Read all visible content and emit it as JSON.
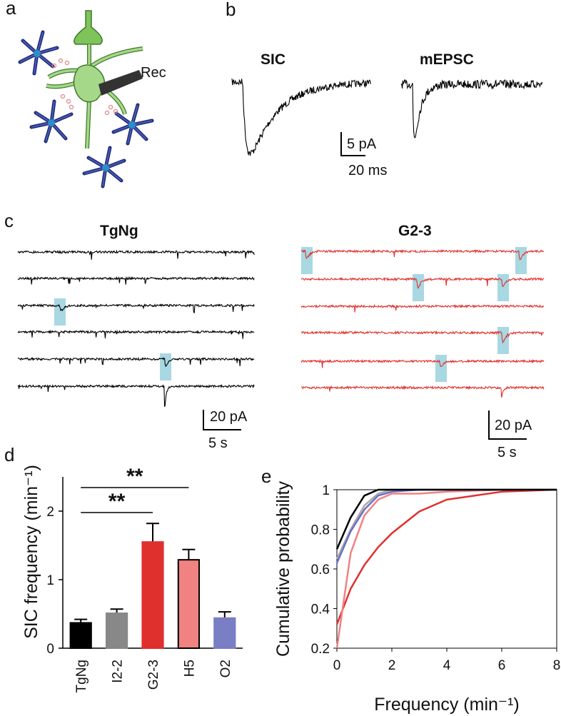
{
  "panel_labels": [
    "a",
    "b",
    "c",
    "d",
    "e"
  ],
  "panel_a": {
    "label": "Rec"
  },
  "panel_b": {
    "traces": [
      "SIC",
      "mEPSC"
    ],
    "scale_y": "5 pA",
    "scale_x": "20 ms"
  },
  "panel_c": {
    "traces": [
      "TgNg",
      "G2-3"
    ],
    "scale_y": [
      "20 pA",
      "20 pA"
    ],
    "scale_x": [
      "5 s",
      "5 s"
    ]
  },
  "chart_data": [
    {
      "type": "bar",
      "ylabel": "SIC frequency (min⁻¹)",
      "categories": [
        "TgNg",
        "I2-2",
        "G2-3",
        "H5",
        "O2"
      ],
      "values": [
        0.37,
        0.51,
        1.55,
        1.29,
        0.44
      ],
      "errors": [
        0.05,
        0.06,
        0.27,
        0.15,
        0.09
      ],
      "colors": [
        "#000000",
        "#888888",
        "#e0302e",
        "#f08282",
        "#7a7ec4"
      ],
      "edgecolors": [
        "#000000",
        "#888888",
        "#e0302e",
        "#000000",
        "#7a7ec4"
      ],
      "ylim": [
        0,
        2.5
      ],
      "yticks": [
        0,
        1,
        2
      ],
      "annotations": [
        "**",
        "**"
      ]
    },
    {
      "type": "line",
      "xlabel": "Frequency (min⁻¹)",
      "ylabel": "Cumulative probability",
      "x": [
        0,
        0.5,
        1,
        1.5,
        2,
        3,
        4,
        6,
        8
      ],
      "series": [
        {
          "color": "#e0302e",
          "values": [
            0.32,
            0.5,
            0.62,
            0.71,
            0.78,
            0.89,
            0.95,
            0.99,
            1.0
          ]
        },
        {
          "color": "#f08282",
          "values": [
            0.2,
            0.68,
            0.87,
            0.95,
            0.98,
            0.98,
            0.99,
            1.0,
            1.0
          ]
        },
        {
          "color": "#aaaaaa",
          "values": [
            0.65,
            0.8,
            0.92,
            0.98,
            1.0,
            1.0,
            1.0,
            1.0,
            1.0
          ]
        },
        {
          "color": "#6b70c8",
          "values": [
            0.63,
            0.79,
            0.9,
            0.97,
            0.99,
            1.0,
            1.0,
            1.0,
            1.0
          ]
        },
        {
          "color": "#000000",
          "values": [
            0.7,
            0.86,
            0.97,
            1.0,
            1.0,
            1.0,
            1.0,
            1.0,
            1.0
          ]
        }
      ],
      "xlim": [
        0,
        8
      ],
      "xticks": [
        0,
        2,
        4,
        6,
        8
      ],
      "ylim": [
        0.2,
        1.0
      ],
      "yticks": [
        0.2,
        0.4,
        0.6,
        0.8,
        1.0
      ]
    }
  ]
}
